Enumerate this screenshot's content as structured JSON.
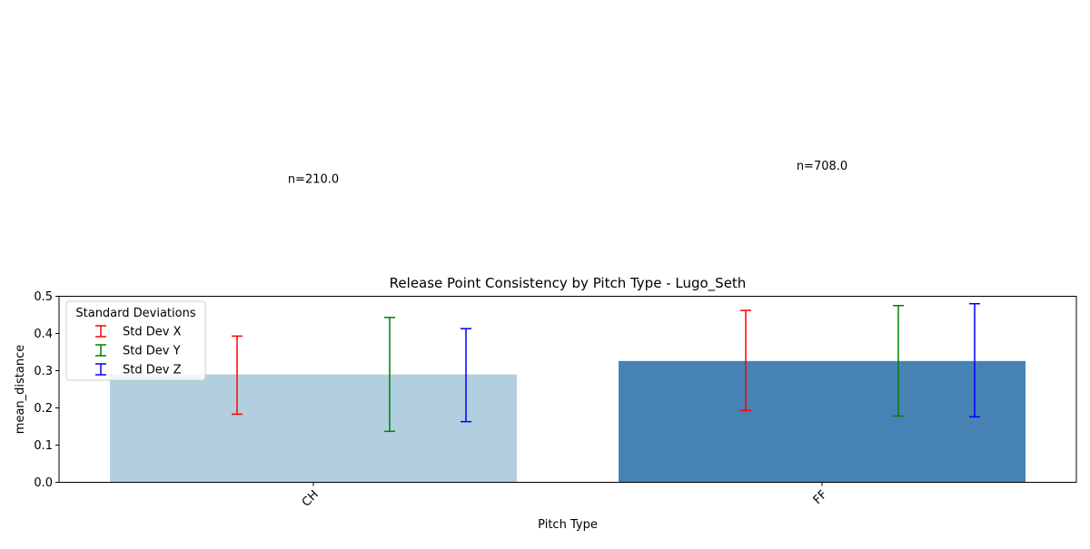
{
  "chart_data": {
    "type": "bar",
    "title": "Release Point Consistency by Pitch Type - Lugo_Seth",
    "xlabel": "Pitch Type",
    "ylabel": "mean_distance",
    "categories": [
      "CH",
      "FF"
    ],
    "values": [
      0.29,
      0.326
    ],
    "bar_colors": [
      "#b2cfdf",
      "#4682b4"
    ],
    "ylim": [
      0,
      0.5
    ],
    "yticks": [
      "0.0",
      "0.1",
      "0.2",
      "0.3",
      "0.4",
      "0.5"
    ],
    "ytick_values": [
      0,
      0.1,
      0.2,
      0.3,
      0.4,
      0.5
    ],
    "annotations": [
      {
        "category": "CH",
        "text": "n=210.0",
        "y": 0.805
      },
      {
        "category": "FF",
        "text": "n=708.0",
        "y": 0.84
      }
    ],
    "error_bars": [
      {
        "name": "Std Dev X",
        "color": "#ff0000",
        "offset": -0.15,
        "values": [
          [
            0.183,
            0.393
          ],
          [
            0.193,
            0.462
          ]
        ]
      },
      {
        "name": "Std Dev Y",
        "color": "#008000",
        "offset": 0.15,
        "values": [
          [
            0.137,
            0.443
          ],
          [
            0.178,
            0.475
          ]
        ]
      },
      {
        "name": "Std Dev Z",
        "color": "#0000ff",
        "offset": 0.3,
        "values": [
          [
            0.163,
            0.413
          ],
          [
            0.176,
            0.48
          ]
        ]
      }
    ],
    "legend": {
      "title": "Standard Deviations",
      "placement": "upper-left",
      "entries": [
        "Std Dev X",
        "Std Dev Y",
        "Std Dev Z"
      ]
    },
    "grid": false
  }
}
